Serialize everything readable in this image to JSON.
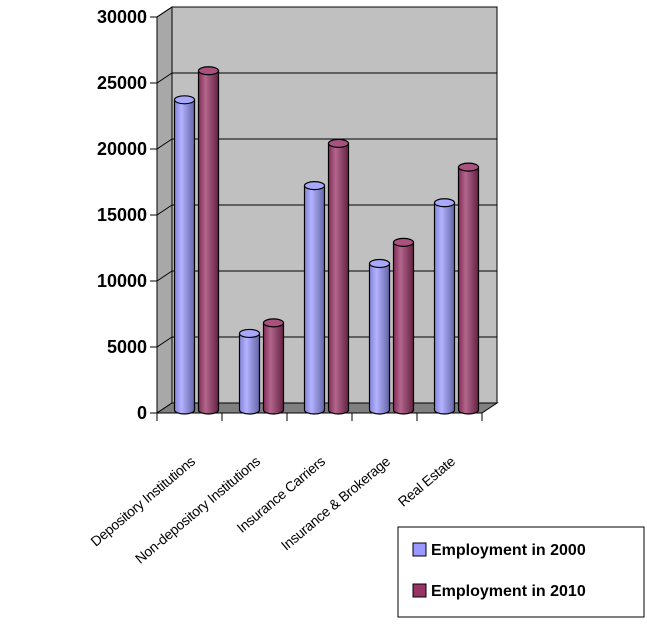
{
  "chart_data": {
    "type": "bar",
    "title": "",
    "xlabel": "",
    "ylabel": "",
    "ylim": [
      0,
      30000
    ],
    "yticks": [
      0,
      5000,
      10000,
      15000,
      20000,
      25000,
      30000
    ],
    "grid": true,
    "legend_position": "bottom-right",
    "categories": [
      "Depository Institutions",
      "Non-depository Institutions",
      "Insurance Carriers",
      "Insurance & Brokerage",
      "Real Estate"
    ],
    "series": [
      {
        "name": "Employment in 2000",
        "color": "#9999ff",
        "values": [
          23500,
          5800,
          17000,
          11100,
          15700
        ]
      },
      {
        "name": "Employment in 2010",
        "color": "#993366",
        "values": [
          25700,
          6600,
          20200,
          12700,
          18400
        ]
      }
    ]
  }
}
